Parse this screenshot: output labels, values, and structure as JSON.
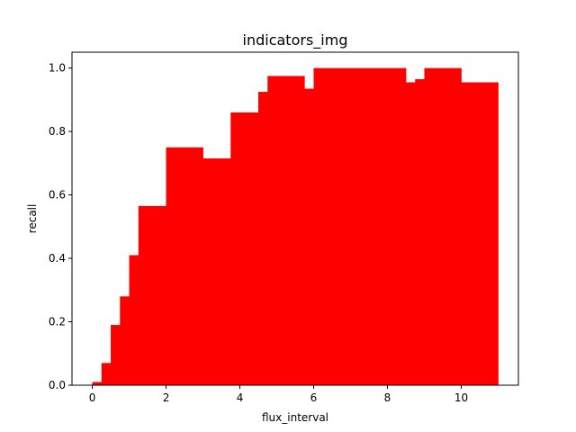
{
  "chart_data": {
    "type": "bar",
    "title": "indicators_img",
    "xlabel": "flux_interval",
    "ylabel": "recall",
    "xlim": [
      -0.55,
      11.55
    ],
    "ylim": [
      0,
      1.05
    ],
    "x_ticks": [
      0,
      2,
      4,
      6,
      8,
      10
    ],
    "y_ticks": [
      0.0,
      0.2,
      0.4,
      0.6,
      0.8,
      1.0
    ],
    "x_tick_labels": [
      "0",
      "2",
      "4",
      "6",
      "8",
      "10"
    ],
    "y_tick_labels": [
      "0.0",
      "0.2",
      "0.4",
      "0.6",
      "0.8",
      "1.0"
    ],
    "grid": false,
    "bar_color": "#ff0000",
    "bars": [
      {
        "x0": 0.0,
        "x1": 0.25,
        "value": 0.01
      },
      {
        "x0": 0.25,
        "x1": 0.5,
        "value": 0.07
      },
      {
        "x0": 0.5,
        "x1": 0.75,
        "value": 0.19
      },
      {
        "x0": 0.75,
        "x1": 1.0,
        "value": 0.28
      },
      {
        "x0": 1.0,
        "x1": 1.25,
        "value": 0.41
      },
      {
        "x0": 1.25,
        "x1": 2.0,
        "value": 0.565
      },
      {
        "x0": 2.0,
        "x1": 3.0,
        "value": 0.75
      },
      {
        "x0": 3.0,
        "x1": 3.75,
        "value": 0.715
      },
      {
        "x0": 3.75,
        "x1": 4.5,
        "value": 0.86
      },
      {
        "x0": 4.5,
        "x1": 4.75,
        "value": 0.925
      },
      {
        "x0": 4.75,
        "x1": 5.75,
        "value": 0.975
      },
      {
        "x0": 5.75,
        "x1": 6.0,
        "value": 0.935
      },
      {
        "x0": 6.0,
        "x1": 8.5,
        "value": 1.0
      },
      {
        "x0": 8.5,
        "x1": 8.75,
        "value": 0.955
      },
      {
        "x0": 8.75,
        "x1": 9.0,
        "value": 0.965
      },
      {
        "x0": 9.0,
        "x1": 10.0,
        "value": 1.0
      },
      {
        "x0": 10.0,
        "x1": 11.0,
        "value": 0.955
      }
    ]
  }
}
